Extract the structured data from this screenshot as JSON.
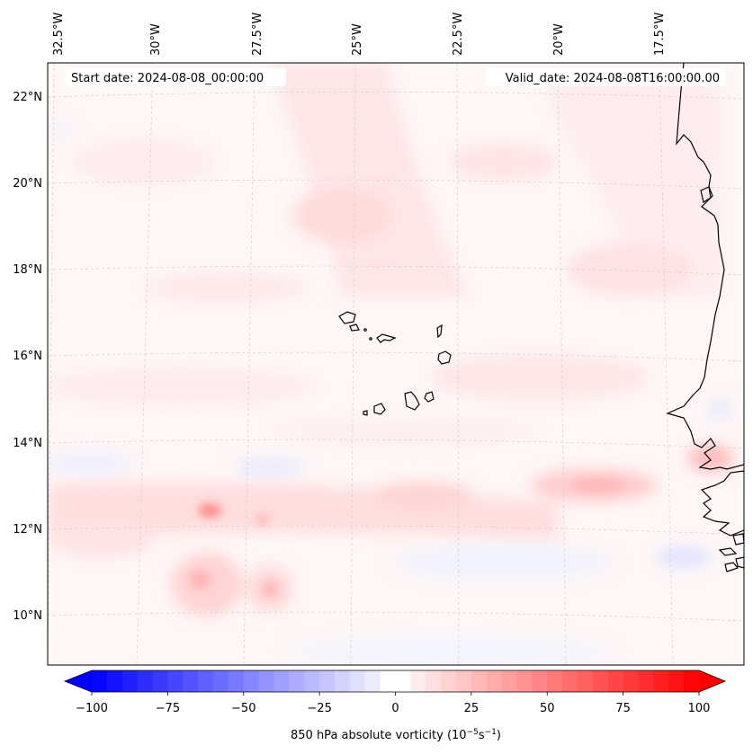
{
  "map": {
    "start_date": "Start date: 2024-08-08_00:00:00",
    "valid_date": "Valid_date: 2024-08-08T16:00:00.00",
    "lon_labels": [
      "32.5°W",
      "30°W",
      "27.5°W",
      "25°W",
      "22.5°W",
      "20°W",
      "17.5°W"
    ],
    "lat_labels": [
      "22°N",
      "20°N",
      "18°N",
      "16°N",
      "14°N",
      "12°N",
      "10°N"
    ],
    "field": "850 hPa absolute vorticity",
    "region": "Cabo Verde islands and West African coast"
  },
  "colorbar": {
    "ticks": [
      "−100",
      "−75",
      "−50",
      "−25",
      "0",
      "25",
      "50",
      "75",
      "100"
    ],
    "label": "850 hPa absolute vorticity (10",
    "label_exp1": "−5",
    "label_mid": "s",
    "label_exp2": "−1",
    "label_end": ")",
    "min": -100,
    "max": 100,
    "levels": 41
  },
  "colors": {
    "neg": "#0000ff",
    "pos": "#ff0000",
    "coast": "#000000"
  }
}
